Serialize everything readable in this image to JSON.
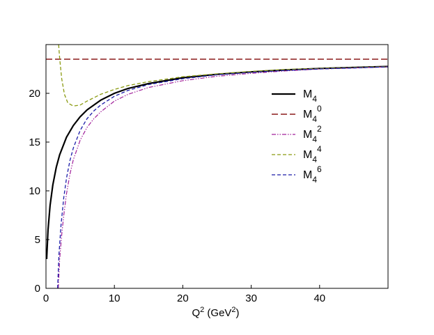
{
  "chart_data": {
    "type": "line",
    "xlabel": {
      "base": "Q",
      "sup": "2",
      "mid": " (GeV",
      "sup2": "2",
      "end": ")"
    },
    "ylabel": "",
    "xlim": [
      0,
      50
    ],
    "ylim": [
      0,
      25
    ],
    "xticks": [
      0,
      10,
      20,
      30,
      40
    ],
    "yticks": [
      0,
      5,
      10,
      15,
      20
    ],
    "grid": false,
    "legend_position": "right",
    "series": [
      {
        "name": {
          "base": "M",
          "sub": "4",
          "sup": ""
        },
        "color": "#000000",
        "dash": "",
        "width": 2.2,
        "points": [
          [
            0.1,
            3.0
          ],
          [
            0.3,
            6.0
          ],
          [
            0.6,
            8.5
          ],
          [
            1,
            10.6
          ],
          [
            1.5,
            12.4
          ],
          [
            2,
            13.7
          ],
          [
            3,
            15.5
          ],
          [
            4,
            16.7
          ],
          [
            5,
            17.6
          ],
          [
            6,
            18.3
          ],
          [
            8,
            19.3
          ],
          [
            10,
            20.0
          ],
          [
            12,
            20.5
          ],
          [
            15,
            21.0
          ],
          [
            20,
            21.6
          ],
          [
            25,
            21.95
          ],
          [
            30,
            22.2
          ],
          [
            35,
            22.4
          ],
          [
            40,
            22.55
          ],
          [
            45,
            22.65
          ],
          [
            50,
            22.75
          ]
        ]
      },
      {
        "name": {
          "base": "M",
          "sub": "4",
          "sup": "0"
        },
        "color": "#8b1a1a",
        "dash": "9,4",
        "width": 1.6,
        "points": [
          [
            0,
            23.5
          ],
          [
            50,
            23.5
          ]
        ]
      },
      {
        "name": {
          "base": "M",
          "sub": "4",
          "sup": "2"
        },
        "color": "#a0209a",
        "dash": "6,2,1.5,2,1.5,2",
        "width": 1.2,
        "points": [
          [
            1.8,
            0.0
          ],
          [
            2,
            3.0
          ],
          [
            2.3,
            5.5
          ],
          [
            2.6,
            7.5
          ],
          [
            3,
            9.7
          ],
          [
            3.5,
            11.7
          ],
          [
            4,
            13.2
          ],
          [
            5,
            15.2
          ],
          [
            6,
            16.5
          ],
          [
            7,
            17.4
          ],
          [
            8,
            18.1
          ],
          [
            10,
            19.2
          ],
          [
            12,
            19.9
          ],
          [
            15,
            20.6
          ],
          [
            20,
            21.3
          ],
          [
            25,
            21.75
          ],
          [
            30,
            22.05
          ],
          [
            35,
            22.3
          ],
          [
            40,
            22.5
          ],
          [
            45,
            22.6
          ],
          [
            50,
            22.72
          ]
        ]
      },
      {
        "name": {
          "base": "M",
          "sub": "4",
          "sup": "4"
        },
        "color": "#8a9a10",
        "dash": "5,3",
        "width": 1.3,
        "points": [
          [
            1.85,
            25.0
          ],
          [
            2.0,
            23.6
          ],
          [
            2.3,
            21.5
          ],
          [
            2.7,
            19.9
          ],
          [
            3.2,
            19.0
          ],
          [
            4,
            18.7
          ],
          [
            5,
            18.8
          ],
          [
            6,
            19.2
          ],
          [
            8,
            19.9
          ],
          [
            10,
            20.4
          ],
          [
            12,
            20.8
          ],
          [
            15,
            21.2
          ],
          [
            20,
            21.7
          ],
          [
            25,
            22.0
          ],
          [
            30,
            22.25
          ],
          [
            35,
            22.45
          ],
          [
            40,
            22.55
          ],
          [
            45,
            22.65
          ],
          [
            50,
            22.75
          ]
        ]
      },
      {
        "name": {
          "base": "M",
          "sub": "4",
          "sup": "6"
        },
        "color": "#1a1aa8",
        "dash": "5,3",
        "width": 1.3,
        "points": [
          [
            1.7,
            0.0
          ],
          [
            1.9,
            3.5
          ],
          [
            2.2,
            6.5
          ],
          [
            2.6,
            9.3
          ],
          [
            3,
            11.3
          ],
          [
            3.5,
            13.1
          ],
          [
            4,
            14.4
          ],
          [
            5,
            16.2
          ],
          [
            6,
            17.4
          ],
          [
            7,
            18.2
          ],
          [
            8,
            18.8
          ],
          [
            10,
            19.7
          ],
          [
            12,
            20.3
          ],
          [
            15,
            20.9
          ],
          [
            20,
            21.5
          ],
          [
            25,
            21.9
          ],
          [
            30,
            22.15
          ],
          [
            35,
            22.35
          ],
          [
            40,
            22.5
          ],
          [
            45,
            22.6
          ],
          [
            50,
            22.72
          ]
        ]
      }
    ]
  }
}
